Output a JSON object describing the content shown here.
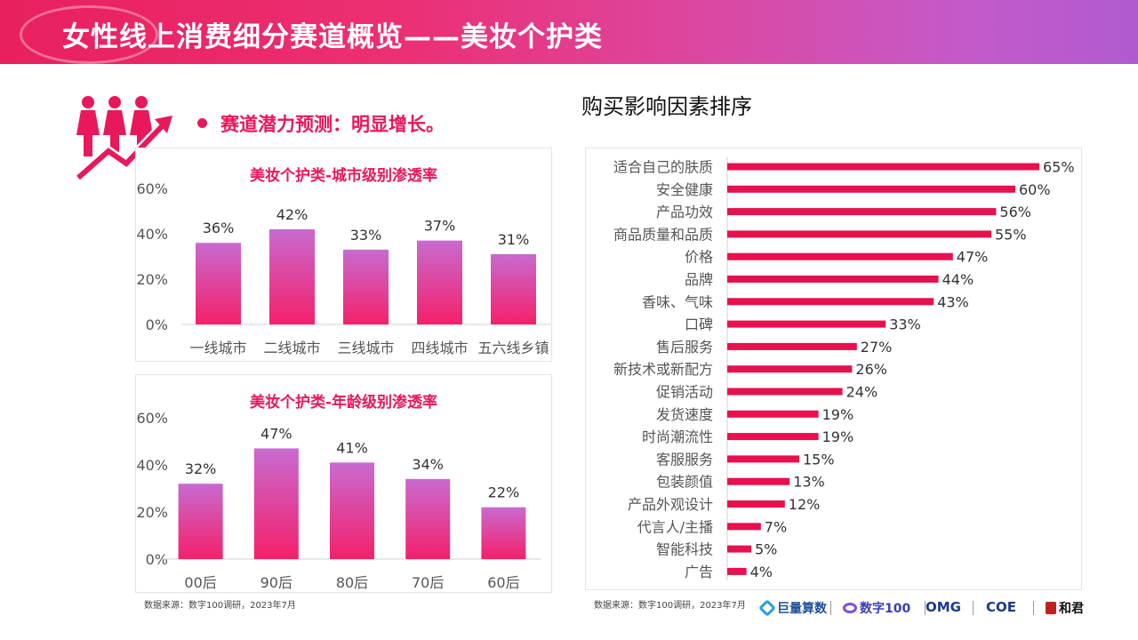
{
  "header": {
    "title": "女性线上消费细分赛道概览——美妆个护类"
  },
  "bullet": {
    "text": "赛道潜力预测：明显增长。"
  },
  "right_title": "购买影响因素排序",
  "sources": {
    "left": "数据来源：数字100调研，2023年7月",
    "right": "数据来源：数字100调研，2023年7月"
  },
  "logos": {
    "julian": "巨量算数",
    "shuzi": "数字100",
    "omg": "OMG",
    "coe": "COE",
    "hejun": "和君"
  },
  "colors": {
    "accent": "#e8185a",
    "bar_top": "#c86ad0",
    "bar_bottom": "#f5206a",
    "h_bar": "#e8104e"
  },
  "chart_data": [
    {
      "type": "bar",
      "title": "美妆个护类-城市级别渗透率",
      "categories": [
        "一线城市",
        "二线城市",
        "三线城市",
        "四线城市",
        "五六线乡镇"
      ],
      "values": [
        36,
        42,
        33,
        37,
        31
      ],
      "value_labels": [
        "36%",
        "42%",
        "33%",
        "37%",
        "31%"
      ],
      "ylim": [
        0,
        60
      ],
      "yticks": [
        "0%",
        "20%",
        "40%",
        "60%"
      ],
      "grid": false
    },
    {
      "type": "bar",
      "title": "美妆个护类-年龄级别渗透率",
      "categories": [
        "00后",
        "90后",
        "80后",
        "70后",
        "60后"
      ],
      "values": [
        32,
        47,
        41,
        34,
        22
      ],
      "value_labels": [
        "32%",
        "47%",
        "41%",
        "34%",
        "22%"
      ],
      "ylim": [
        0,
        60
      ],
      "yticks": [
        "0%",
        "20%",
        "40%",
        "60%"
      ],
      "grid": false
    },
    {
      "type": "bar",
      "orientation": "horizontal",
      "categories": [
        "适合自己的肤质",
        "安全健康",
        "产品功效",
        "商品质量和品质",
        "价格",
        "品牌",
        "香味、气味",
        "口碑",
        "售后服务",
        "新技术或新配方",
        "促销活动",
        "发货速度",
        "时尚潮流性",
        "客服服务",
        "包装颜值",
        "产品外观设计",
        "代言人/主播",
        "智能科技",
        "广告"
      ],
      "values": [
        65,
        60,
        56,
        55,
        47,
        44,
        43,
        33,
        27,
        26,
        24,
        19,
        19,
        15,
        13,
        12,
        7,
        5,
        4
      ],
      "value_labels": [
        "65%",
        "60%",
        "56%",
        "55%",
        "47%",
        "44%",
        "43%",
        "33%",
        "27%",
        "26%",
        "24%",
        "19%",
        "19%",
        "15%",
        "13%",
        "12%",
        "7%",
        "5%",
        "4%"
      ],
      "xlim": [
        0,
        65
      ]
    }
  ]
}
